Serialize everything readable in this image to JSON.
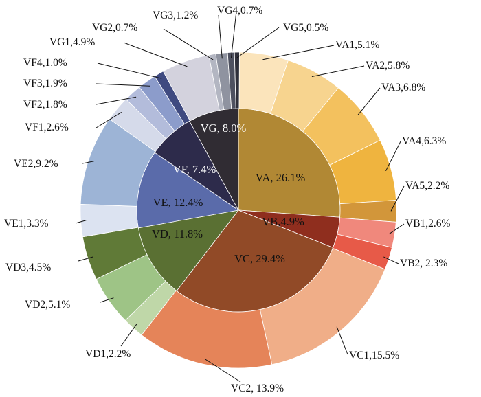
{
  "chart_data": {
    "type": "pie",
    "variant": "nested-donut",
    "inner": [
      {
        "label": "VA, 26.1%",
        "value": 26.1,
        "color": "#B18834",
        "text_color": "#111111"
      },
      {
        "label": "VB,4.9%",
        "value": 4.9,
        "color": "#8F2E1E",
        "text_color": "#111111"
      },
      {
        "label": "VC, 29.4%",
        "value": 29.4,
        "color": "#914A27",
        "text_color": "#111111"
      },
      {
        "label": "VD, 11.8%",
        "value": 11.8,
        "color": "#5A7033",
        "text_color": "#111111"
      },
      {
        "label": "VE, 12.4%",
        "value": 12.4,
        "color": "#5A6BAA",
        "text_color": "#111111"
      },
      {
        "label": "VF, 7.4%",
        "value": 7.4,
        "color": "#2D2B4B",
        "text_color": "#ffffff"
      },
      {
        "label": "VG, 8.0%",
        "value": 8.0,
        "color": "#302C33",
        "text_color": "#ffffff"
      }
    ],
    "outer": [
      {
        "label": "VA1,5.1%",
        "value": 5.1,
        "color": "#FBE4BB"
      },
      {
        "label": "VA2,5.8%",
        "value": 5.8,
        "color": "#F7D48F"
      },
      {
        "label": "VA3,6.8%",
        "value": 6.8,
        "color": "#F3C15E"
      },
      {
        "label": "VA4,6.3%",
        "value": 6.3,
        "color": "#EFB43F"
      },
      {
        "label": "VA5,2.2%",
        "value": 2.2,
        "color": "#D2963A"
      },
      {
        "label": "VB1,2.6%",
        "value": 2.6,
        "color": "#F0887C"
      },
      {
        "label": "VB2, 2.3%",
        "value": 2.3,
        "color": "#E75A48"
      },
      {
        "label": "VC1,15.5%",
        "value": 15.5,
        "color": "#F0AE88"
      },
      {
        "label": "VC2, 13.9%",
        "value": 13.9,
        "color": "#E58459"
      },
      {
        "label": "VD1,2.2%",
        "value": 2.2,
        "color": "#BFD7A8"
      },
      {
        "label": "VD2,5.1%",
        "value": 5.1,
        "color": "#9EC486"
      },
      {
        "label": "VD3,4.5%",
        "value": 4.5,
        "color": "#607A37"
      },
      {
        "label": "VE1,3.3%",
        "value": 3.3,
        "color": "#DCE3F1"
      },
      {
        "label": "VE2,9.2%",
        "value": 9.2,
        "color": "#9DB4D6"
      },
      {
        "label": "VF1,2.6%",
        "value": 2.6,
        "color": "#D5DAEA"
      },
      {
        "label": "VF2,1.8%",
        "value": 1.8,
        "color": "#B3BCDB"
      },
      {
        "label": "VF3,1.9%",
        "value": 1.9,
        "color": "#8C9CCB"
      },
      {
        "label": "VF4,1.0%",
        "value": 1.0,
        "color": "#3F4A80"
      },
      {
        "label": "VG1,4.9%",
        "value": 4.9,
        "color": "#D3D2DD"
      },
      {
        "label": "VG2,0.7%",
        "value": 0.7,
        "color": "#B3B6C2"
      },
      {
        "label": "VG3,1.2%",
        "value": 1.2,
        "color": "#8F93A0"
      },
      {
        "label": "VG4,0.7%",
        "value": 0.7,
        "color": "#4E5160"
      },
      {
        "label": "VG5,0.5%",
        "value": 0.5,
        "color": "#2E2F3A"
      }
    ],
    "title": "",
    "legend": "none",
    "start": "12 o'clock, clockwise"
  }
}
